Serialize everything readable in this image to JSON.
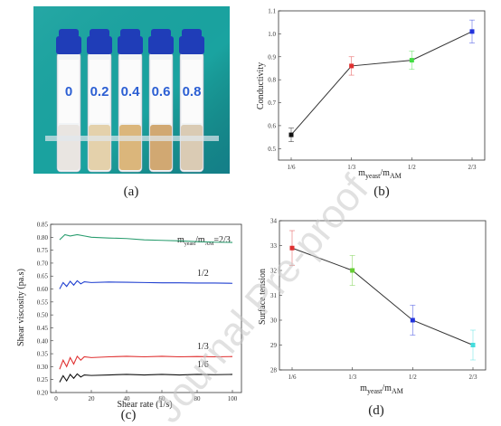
{
  "panels": {
    "a": {
      "label": "(a)"
    },
    "b": {
      "label": "(b)"
    },
    "c": {
      "label": "(c)"
    },
    "d": {
      "label": "(d)"
    }
  },
  "photo": {
    "tube_labels": [
      "0",
      "0.2",
      "0.4",
      "0.6",
      "0.8"
    ],
    "liquid_colors": [
      "#e8e4df",
      "#e3cfa6",
      "#d9b274",
      "#cfa36a",
      "#d8c8b0"
    ],
    "cap_color": "#1f3db8",
    "background_color": "#1aa3a0"
  },
  "watermark": "Journal Pre-proof",
  "chart_data": [
    {
      "id": "b",
      "type": "scatter",
      "ylabel": "Conductivity",
      "xlabel_main": "m",
      "xlabel_sub1": "yeast",
      "xlabel_mid": "/m",
      "xlabel_sub2": "AM",
      "categories": [
        "1/6",
        "1/3",
        "1/2",
        "2/3"
      ],
      "values": [
        0.56,
        0.86,
        0.885,
        1.01
      ],
      "errors": [
        0.03,
        0.04,
        0.04,
        0.05
      ],
      "point_colors": [
        "#111111",
        "#e03030",
        "#44dd44",
        "#2233dd"
      ],
      "ylim": [
        0.45,
        1.1
      ],
      "yticks": [
        "0.5",
        "0.6",
        "0.7",
        "0.8",
        "0.9",
        "1.0",
        "1.1"
      ],
      "ytick_values": [
        0.5,
        0.6,
        0.7,
        0.8,
        0.9,
        1.0,
        1.1
      ]
    },
    {
      "id": "c",
      "type": "line",
      "ylabel": "Shear viscosity (pa.s)",
      "xlabel": "Shear rate (1/s)",
      "xlim": [
        0,
        100
      ],
      "ylim": [
        0.2,
        0.85
      ],
      "xticks": [
        "0",
        "20",
        "40",
        "60",
        "80",
        "100"
      ],
      "xtick_values": [
        0,
        20,
        40,
        60,
        80,
        100
      ],
      "yticks": [
        "0.20",
        "0.25",
        "0.30",
        "0.35",
        "0.40",
        "0.45",
        "0.50",
        "0.55",
        "0.60",
        "0.65",
        "0.70",
        "0.75",
        "0.80",
        "0.85"
      ],
      "ytick_values": [
        0.2,
        0.25,
        0.3,
        0.35,
        0.4,
        0.45,
        0.5,
        0.55,
        0.6,
        0.65,
        0.7,
        0.75,
        0.8,
        0.85
      ],
      "series": [
        {
          "name": "2/3",
          "color": "#2a9d6f",
          "x": [
            2,
            5,
            8,
            12,
            16,
            20,
            30,
            40,
            50,
            60,
            70,
            80,
            90,
            100
          ],
          "y": [
            0.79,
            0.81,
            0.805,
            0.81,
            0.805,
            0.8,
            0.797,
            0.795,
            0.79,
            0.788,
            0.786,
            0.783,
            0.781,
            0.78
          ]
        },
        {
          "name": "1/2",
          "color": "#1f3fd0",
          "x": [
            2,
            4,
            6,
            8,
            10,
            12,
            14,
            16,
            20,
            30,
            40,
            50,
            60,
            70,
            80,
            90,
            100
          ],
          "y": [
            0.6,
            0.625,
            0.61,
            0.63,
            0.615,
            0.632,
            0.62,
            0.628,
            0.625,
            0.627,
            0.626,
            0.625,
            0.624,
            0.624,
            0.623,
            0.623,
            0.622
          ]
        },
        {
          "name": "1/3",
          "color": "#e03030",
          "x": [
            2,
            4,
            6,
            8,
            10,
            12,
            14,
            16,
            20,
            30,
            40,
            50,
            60,
            70,
            80,
            90,
            100
          ],
          "y": [
            0.29,
            0.325,
            0.3,
            0.335,
            0.31,
            0.34,
            0.325,
            0.338,
            0.335,
            0.338,
            0.34,
            0.338,
            0.34,
            0.338,
            0.339,
            0.338,
            0.339
          ]
        },
        {
          "name": "1/6",
          "color": "#111111",
          "x": [
            2,
            4,
            6,
            8,
            10,
            12,
            14,
            16,
            20,
            30,
            40,
            50,
            60,
            70,
            80,
            90,
            100
          ],
          "y": [
            0.24,
            0.265,
            0.245,
            0.27,
            0.255,
            0.272,
            0.26,
            0.268,
            0.266,
            0.268,
            0.27,
            0.268,
            0.27,
            0.268,
            0.27,
            0.269,
            0.27
          ]
        }
      ],
      "legend_title_main": "m",
      "legend_title_sub1": "yeast",
      "legend_title_mid": "/m",
      "legend_title_sub2": "AM",
      "legend_title_val": "=2/3"
    },
    {
      "id": "d",
      "type": "scatter",
      "ylabel": "Surface tension",
      "xlabel_main": "m",
      "xlabel_sub1": "yeast",
      "xlabel_mid": "/m",
      "xlabel_sub2": "AM",
      "categories": [
        "1/6",
        "1/3",
        "1/2",
        "2/3"
      ],
      "values": [
        32.9,
        32.0,
        30.0,
        29.0
      ],
      "errors": [
        0.7,
        0.6,
        0.6,
        0.6
      ],
      "point_colors": [
        "#e03030",
        "#66cc33",
        "#2233dd",
        "#44dddd"
      ],
      "ylim": [
        28,
        34
      ],
      "yticks": [
        "28",
        "29",
        "30",
        "31",
        "32",
        "33",
        "34"
      ],
      "ytick_values": [
        28,
        29,
        30,
        31,
        32,
        33,
        34
      ]
    }
  ]
}
